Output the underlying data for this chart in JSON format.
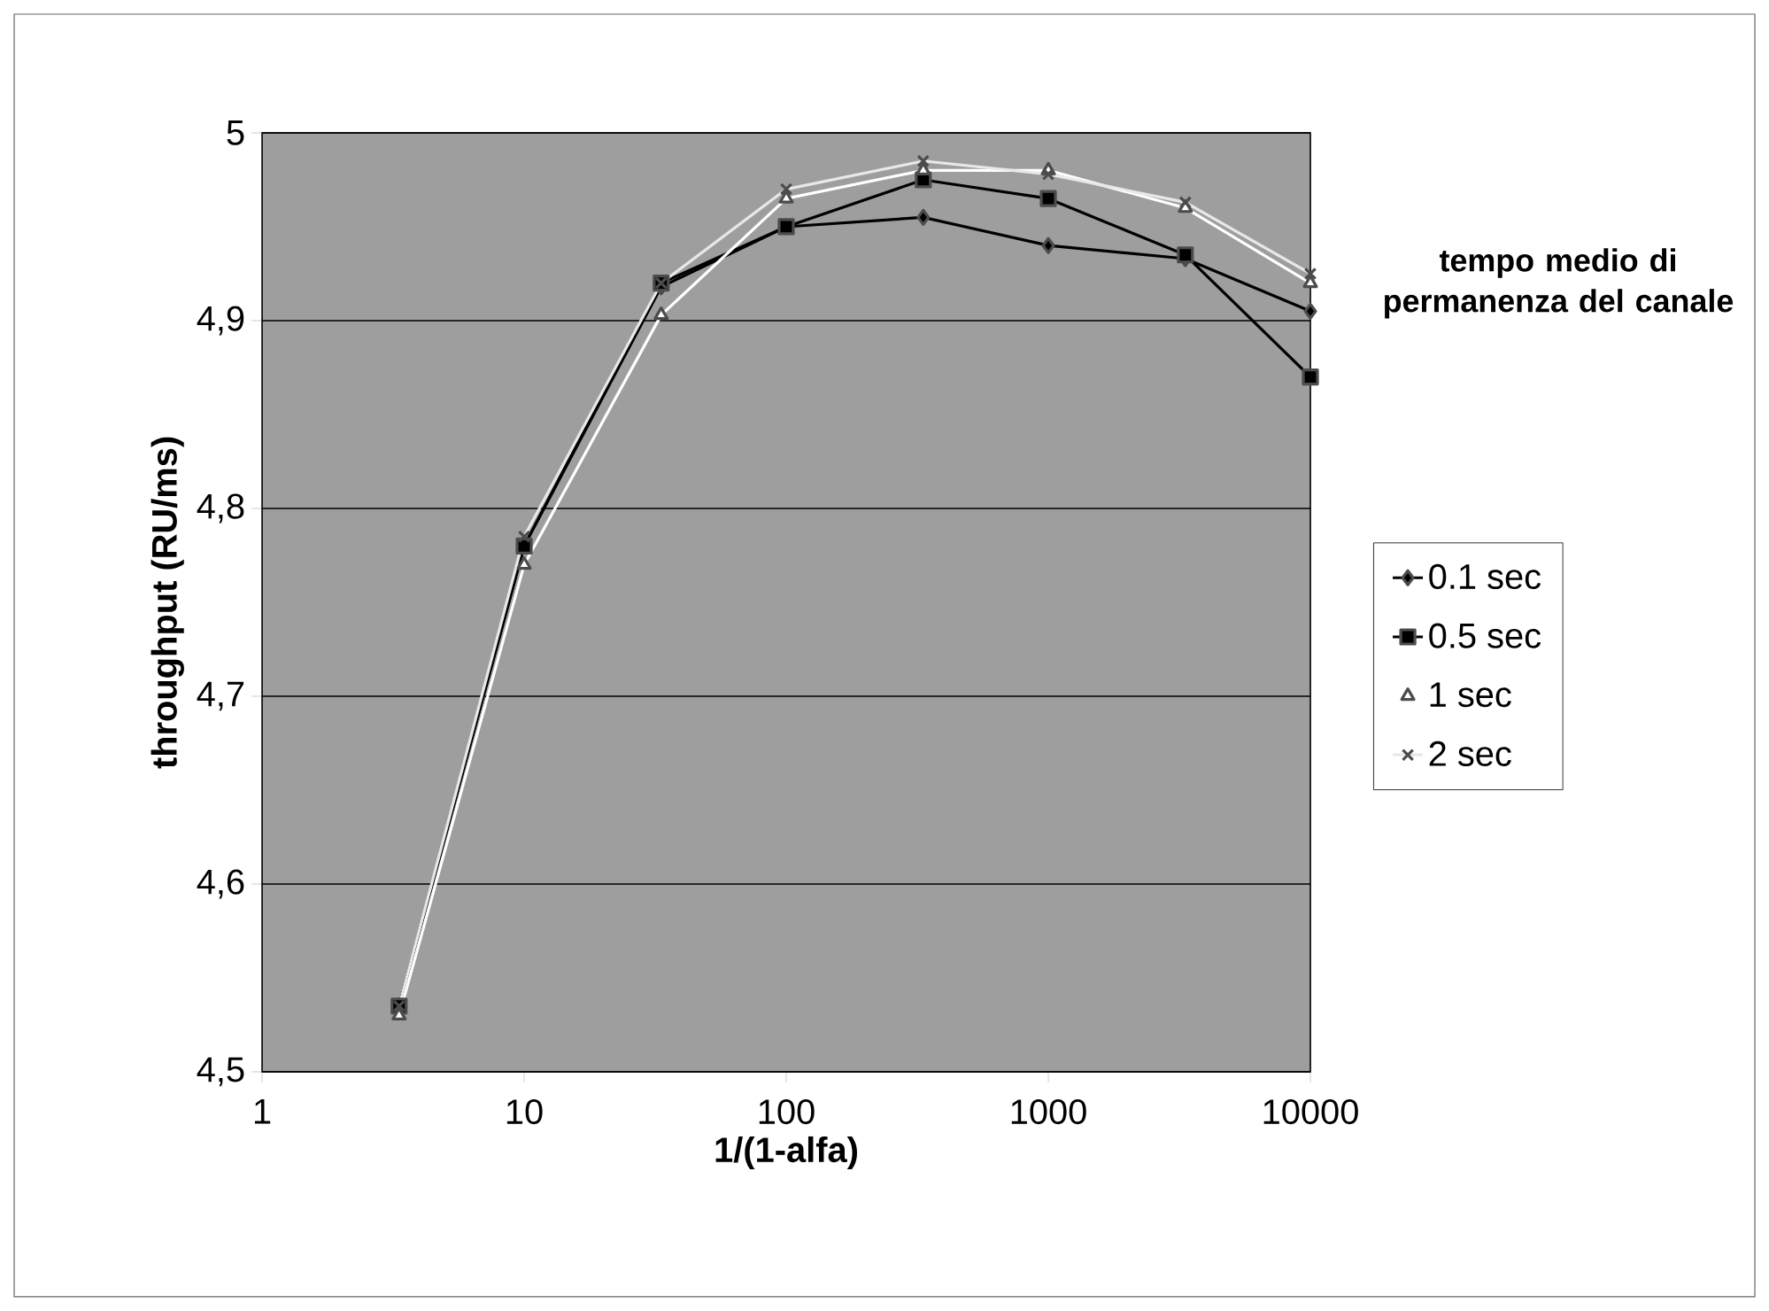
{
  "chart_data": {
    "type": "line",
    "xlabel": "1/(1-alfa)",
    "ylabel": "throughput (RU/ms)",
    "legend_title": "tempo medio di permanenza del canale",
    "x": [
      3.333,
      10,
      33.33,
      100,
      333.3,
      1000,
      3333,
      10000
    ],
    "series": [
      {
        "name": "0.1 sec",
        "color": "#000000",
        "marker": "diamond",
        "values": [
          4.535,
          4.78,
          4.918,
          4.95,
          4.955,
          4.94,
          4.933,
          4.905
        ]
      },
      {
        "name": "0.5 sec",
        "color": "#000000",
        "marker": "square",
        "values": [
          4.535,
          4.78,
          4.92,
          4.95,
          4.975,
          4.965,
          4.935,
          4.87
        ]
      },
      {
        "name": "1 sec",
        "color": "#ffffff",
        "marker": "triangle",
        "values": [
          4.53,
          4.77,
          4.903,
          4.965,
          4.98,
          4.98,
          4.96,
          4.92
        ]
      },
      {
        "name": "2 sec",
        "color": "#e8e8e8",
        "marker": "cross",
        "values": [
          4.535,
          4.785,
          4.92,
          4.97,
          4.985,
          4.978,
          4.963,
          4.925
        ]
      }
    ],
    "log": "x",
    "xlim": [
      1,
      10000
    ],
    "xticks": [
      1,
      10,
      100,
      1000,
      10000
    ],
    "ylim": [
      4.5,
      5
    ],
    "yticks": [
      {
        "value": 4.5,
        "label": "4,5"
      },
      {
        "value": 4.6,
        "label": "4,6"
      },
      {
        "value": 4.7,
        "label": "4,7"
      },
      {
        "value": 4.8,
        "label": "4,8"
      },
      {
        "value": 4.9,
        "label": "4,9"
      },
      5
    ],
    "grid": "y",
    "legend": "right",
    "line_style": "solid"
  }
}
